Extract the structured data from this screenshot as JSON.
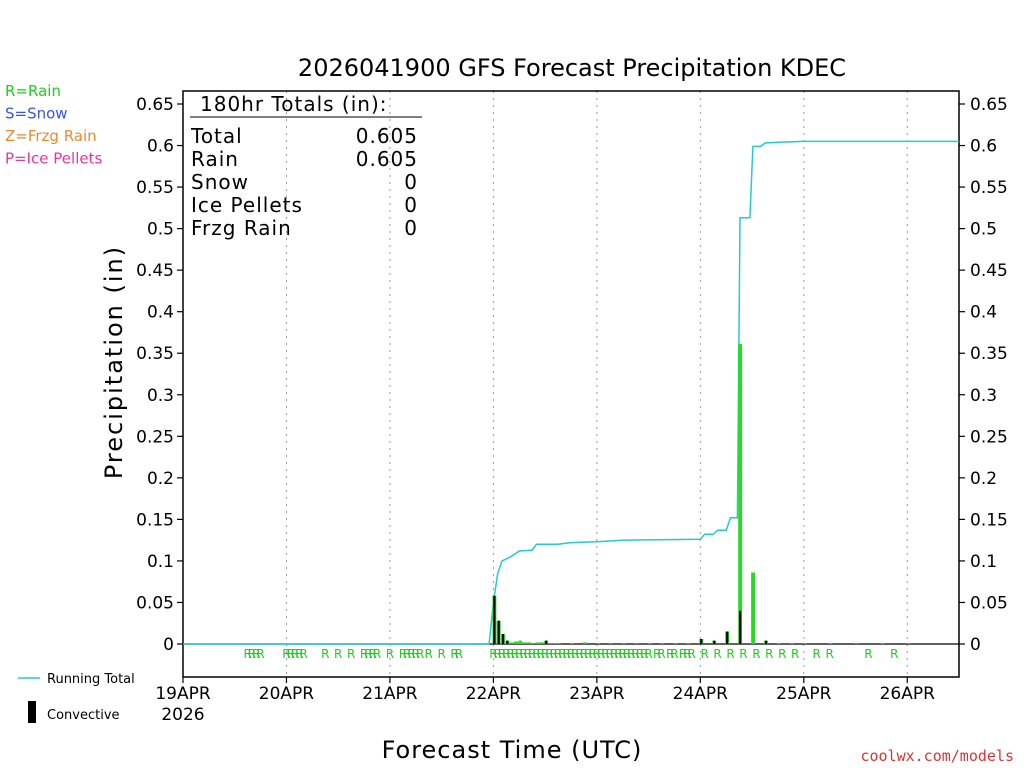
{
  "chart_data": {
    "type": "bar",
    "title": "2026041900 GFS Forecast Precipitation KDEC",
    "xlabel": "Forecast Time (UTC)",
    "ylabel": "Precipitation (in)",
    "ylim": [
      -0.04,
      0.65
    ],
    "yticks": [
      "0",
      "0.05",
      "0.1",
      "0.15",
      "0.2",
      "0.25",
      "0.3",
      "0.35",
      "0.4",
      "0.45",
      "0.5",
      "0.55",
      "0.6",
      "0.65"
    ],
    "xlim_hours": [
      0,
      180
    ],
    "x_unit": "forecast hours",
    "xticks": [
      {
        "h": 0,
        "label": "19APR",
        "sub": "2026"
      },
      {
        "h": 24,
        "label": "20APR"
      },
      {
        "h": 48,
        "label": "21APR"
      },
      {
        "h": 72,
        "label": "22APR"
      },
      {
        "h": 96,
        "label": "23APR"
      },
      {
        "h": 120,
        "label": "24APR"
      },
      {
        "h": 144,
        "label": "25APR"
      },
      {
        "h": 168,
        "label": "26APR"
      }
    ],
    "type_legend": [
      {
        "text": "R=Rain",
        "color": "#22cc22"
      },
      {
        "text": "S=Snow",
        "color": "#3355ee"
      },
      {
        "text": "Z=Frzg Rain",
        "color": "#ee8833"
      },
      {
        "text": "P=Ice Pellets",
        "color": "#ee3399"
      }
    ],
    "totals_box": {
      "header": "180hr Totals (in):",
      "rows": [
        {
          "label": "Total",
          "value": "0.605"
        },
        {
          "label": "Rain",
          "value": "0.605"
        },
        {
          "label": "Snow",
          "value": "0"
        },
        {
          "label": "Ice Pellets",
          "value": "0"
        },
        {
          "label": "Frzg Rain",
          "value": "0"
        }
      ]
    },
    "series": [
      {
        "name": "Precipitation",
        "color": "#22dd22",
        "bar_width_hours": 0.9,
        "points": [
          {
            "h": 72,
            "v": 0.058,
            "conv": 0.058
          },
          {
            "h": 73,
            "v": 0.028,
            "conv": 0.028
          },
          {
            "h": 74,
            "v": 0.012,
            "conv": 0.012
          },
          {
            "h": 75,
            "v": 0.004,
            "conv": 0.004
          },
          {
            "h": 76,
            "v": 0.002
          },
          {
            "h": 77,
            "v": 0.003
          },
          {
            "h": 78,
            "v": 0.004
          },
          {
            "h": 79,
            "v": 0.002
          },
          {
            "h": 80,
            "v": 0.002
          },
          {
            "h": 81,
            "v": 0.001
          },
          {
            "h": 82,
            "v": 0.002
          },
          {
            "h": 83,
            "v": 0.002
          },
          {
            "h": 84,
            "v": 0.004,
            "conv": 0.004
          },
          {
            "h": 85,
            "v": 0.001
          },
          {
            "h": 86,
            "v": 0.001
          },
          {
            "h": 87,
            "v": 0.001
          },
          {
            "h": 90,
            "v": 0.001
          },
          {
            "h": 93,
            "v": 0.002
          },
          {
            "h": 96,
            "v": 0.001
          },
          {
            "h": 99,
            "v": 0.001
          },
          {
            "h": 102,
            "v": 0.001
          },
          {
            "h": 105,
            "v": 0.001
          },
          {
            "h": 108,
            "v": 0.001
          },
          {
            "h": 111,
            "v": 0.001
          },
          {
            "h": 114,
            "v": 0.001
          },
          {
            "h": 117,
            "v": 0.001
          },
          {
            "h": 120,
            "v": 0.006,
            "conv": 0.006
          },
          {
            "h": 123,
            "v": 0.004,
            "conv": 0.004
          },
          {
            "h": 126,
            "v": 0.015,
            "conv": 0.015
          },
          {
            "h": 129,
            "v": 0.361,
            "conv": 0.04
          },
          {
            "h": 132,
            "v": 0.086
          },
          {
            "h": 135,
            "v": 0.004,
            "conv": 0.004
          },
          {
            "h": 138,
            "v": 0.001
          },
          {
            "h": 141,
            "v": 0.001
          },
          {
            "h": 144,
            "v": 0.001
          },
          {
            "h": 150,
            "v": 0.001
          },
          {
            "h": 156,
            "v": 0.001
          },
          {
            "h": 162,
            "v": 0.001
          },
          {
            "h": 168,
            "v": 0.001
          }
        ]
      },
      {
        "name": "Running Total",
        "color": "#22cccc",
        "points": [
          {
            "h": 0,
            "v": 0
          },
          {
            "h": 71,
            "v": 0
          },
          {
            "h": 72,
            "v": 0.05
          },
          {
            "h": 73,
            "v": 0.085
          },
          {
            "h": 74,
            "v": 0.1
          },
          {
            "h": 76,
            "v": 0.105
          },
          {
            "h": 78,
            "v": 0.112
          },
          {
            "h": 81,
            "v": 0.113
          },
          {
            "h": 82,
            "v": 0.12
          },
          {
            "h": 87,
            "v": 0.12
          },
          {
            "h": 90,
            "v": 0.122
          },
          {
            "h": 96,
            "v": 0.123
          },
          {
            "h": 102,
            "v": 0.125
          },
          {
            "h": 120,
            "v": 0.126
          },
          {
            "h": 121,
            "v": 0.132
          },
          {
            "h": 123,
            "v": 0.132
          },
          {
            "h": 124,
            "v": 0.137
          },
          {
            "h": 126,
            "v": 0.137
          },
          {
            "h": 127,
            "v": 0.152
          },
          {
            "h": 128.6,
            "v": 0.152
          },
          {
            "h": 129.2,
            "v": 0.513
          },
          {
            "h": 131.5,
            "v": 0.513
          },
          {
            "h": 132.2,
            "v": 0.599
          },
          {
            "h": 134,
            "v": 0.599
          },
          {
            "h": 135,
            "v": 0.603
          },
          {
            "h": 138,
            "v": 0.604
          },
          {
            "h": 144,
            "v": 0.605
          },
          {
            "h": 180,
            "v": 0.605
          }
        ]
      }
    ],
    "ptype_markers": {
      "symbol": "R",
      "color": "#22cc22",
      "hours": [
        15,
        16,
        17,
        18,
        24,
        25,
        26,
        27,
        28,
        33,
        36,
        39,
        42,
        43,
        44,
        45,
        48,
        51,
        52,
        53,
        54,
        55,
        57,
        60,
        63,
        64,
        72,
        73,
        74,
        75,
        76,
        77,
        78,
        79,
        80,
        81,
        82,
        83,
        84,
        85,
        86,
        87,
        88,
        89,
        90,
        91,
        92,
        93,
        94,
        95,
        96,
        97,
        98,
        99,
        100,
        101,
        102,
        103,
        104,
        105,
        106,
        107,
        108,
        110,
        111,
        113,
        114,
        116,
        117,
        118,
        121,
        124,
        127,
        130,
        133,
        136,
        139,
        142,
        147,
        150,
        159,
        165
      ]
    },
    "bottom_legend": {
      "running_total": "Running Total",
      "convective": "Convective"
    },
    "credit": "coolwx.com/models"
  }
}
